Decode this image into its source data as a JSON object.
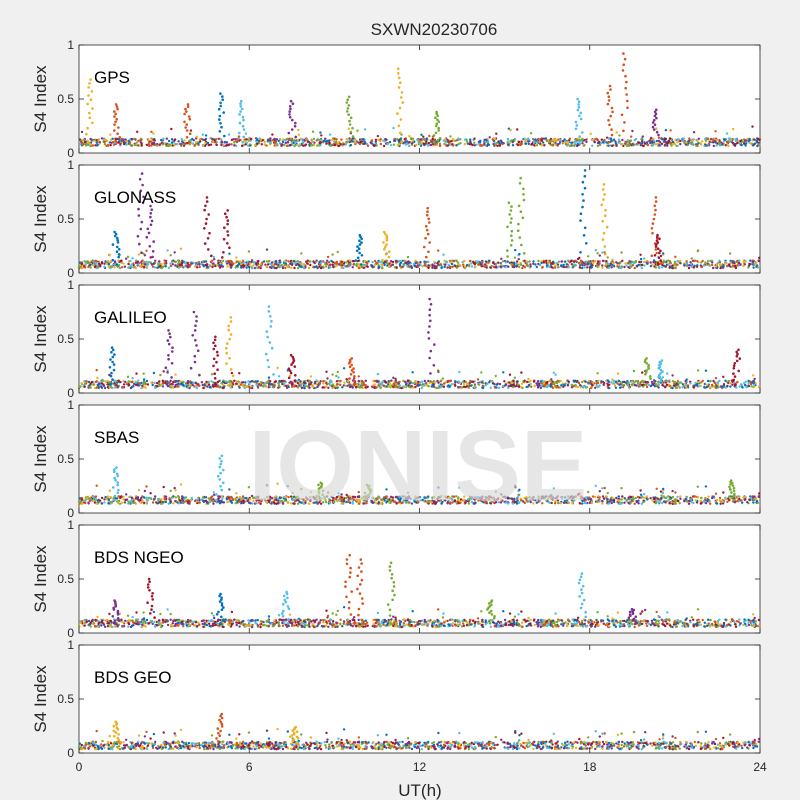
{
  "chart_data": {
    "type": "scatter",
    "title": "SXWN20230706",
    "xlabel": "UT(h)",
    "ylabel": "S4 Index",
    "xlim": [
      0,
      24
    ],
    "ylim": [
      0,
      1
    ],
    "xticks": [
      "0",
      "6",
      "12",
      "18",
      "24"
    ],
    "yticks": [
      "0",
      "0.5",
      "1"
    ],
    "grid": false,
    "watermark": "IONISE",
    "colors": [
      "#0072BD",
      "#D95319",
      "#EDB120",
      "#7E2F8E",
      "#77AC30",
      "#4DBEEE",
      "#A2142F"
    ],
    "panels": [
      {
        "name": "GPS",
        "baseline": 0.1,
        "spikes": [
          {
            "x": 0.4,
            "peak": 0.68,
            "c": 2
          },
          {
            "x": 1.3,
            "peak": 0.45,
            "c": 1
          },
          {
            "x": 3.8,
            "peak": 0.45,
            "c": 1
          },
          {
            "x": 5.0,
            "peak": 0.55,
            "c": 0
          },
          {
            "x": 5.7,
            "peak": 0.48,
            "c": 5
          },
          {
            "x": 7.5,
            "peak": 0.48,
            "c": 3
          },
          {
            "x": 9.5,
            "peak": 0.52,
            "c": 4
          },
          {
            "x": 11.3,
            "peak": 0.78,
            "c": 2
          },
          {
            "x": 12.6,
            "peak": 0.38,
            "c": 4
          },
          {
            "x": 17.6,
            "peak": 0.5,
            "c": 5
          },
          {
            "x": 18.7,
            "peak": 0.62,
            "c": 1
          },
          {
            "x": 19.2,
            "peak": 0.92,
            "c": 1
          },
          {
            "x": 20.3,
            "peak": 0.4,
            "c": 3
          }
        ]
      },
      {
        "name": "GLONASS",
        "baseline": 0.08,
        "spikes": [
          {
            "x": 1.3,
            "peak": 0.38,
            "c": 0
          },
          {
            "x": 2.2,
            "peak": 0.92,
            "c": 3
          },
          {
            "x": 2.5,
            "peak": 0.62,
            "c": 3
          },
          {
            "x": 4.5,
            "peak": 0.7,
            "c": 6
          },
          {
            "x": 5.2,
            "peak": 0.58,
            "c": 6
          },
          {
            "x": 9.9,
            "peak": 0.35,
            "c": 0
          },
          {
            "x": 10.8,
            "peak": 0.38,
            "c": 2
          },
          {
            "x": 12.3,
            "peak": 0.6,
            "c": 1
          },
          {
            "x": 15.2,
            "peak": 0.65,
            "c": 4
          },
          {
            "x": 15.6,
            "peak": 0.88,
            "c": 4
          },
          {
            "x": 17.8,
            "peak": 0.95,
            "c": 0
          },
          {
            "x": 18.5,
            "peak": 0.82,
            "c": 2
          },
          {
            "x": 20.3,
            "peak": 0.7,
            "c": 1
          },
          {
            "x": 20.4,
            "peak": 0.35,
            "c": 6
          }
        ]
      },
      {
        "name": "GALILEO",
        "baseline": 0.08,
        "spikes": [
          {
            "x": 1.2,
            "peak": 0.42,
            "c": 0
          },
          {
            "x": 3.2,
            "peak": 0.58,
            "c": 3
          },
          {
            "x": 4.1,
            "peak": 0.75,
            "c": 3
          },
          {
            "x": 4.8,
            "peak": 0.52,
            "c": 6
          },
          {
            "x": 5.3,
            "peak": 0.7,
            "c": 2
          },
          {
            "x": 6.7,
            "peak": 0.8,
            "c": 5
          },
          {
            "x": 7.5,
            "peak": 0.35,
            "c": 6
          },
          {
            "x": 9.6,
            "peak": 0.32,
            "c": 1
          },
          {
            "x": 12.4,
            "peak": 0.87,
            "c": 3
          },
          {
            "x": 20.0,
            "peak": 0.32,
            "c": 4
          },
          {
            "x": 20.5,
            "peak": 0.3,
            "c": 5
          },
          {
            "x": 23.2,
            "peak": 0.4,
            "c": 6
          }
        ]
      },
      {
        "name": "SBAS",
        "baseline": 0.12,
        "spikes": [
          {
            "x": 1.3,
            "peak": 0.42,
            "c": 5
          },
          {
            "x": 5.0,
            "peak": 0.53,
            "c": 5
          },
          {
            "x": 8.5,
            "peak": 0.28,
            "c": 4
          },
          {
            "x": 10.2,
            "peak": 0.26,
            "c": 4
          },
          {
            "x": 23.0,
            "peak": 0.3,
            "c": 4
          }
        ]
      },
      {
        "name": "BDS NGEO",
        "baseline": 0.09,
        "spikes": [
          {
            "x": 1.3,
            "peak": 0.3,
            "c": 3
          },
          {
            "x": 2.5,
            "peak": 0.5,
            "c": 6
          },
          {
            "x": 5.0,
            "peak": 0.36,
            "c": 0
          },
          {
            "x": 7.3,
            "peak": 0.38,
            "c": 5
          },
          {
            "x": 9.5,
            "peak": 0.72,
            "c": 1
          },
          {
            "x": 9.9,
            "peak": 0.68,
            "c": 1
          },
          {
            "x": 11.0,
            "peak": 0.65,
            "c": 4
          },
          {
            "x": 14.5,
            "peak": 0.3,
            "c": 4
          },
          {
            "x": 17.7,
            "peak": 0.55,
            "c": 5
          },
          {
            "x": 19.5,
            "peak": 0.22,
            "c": 3
          }
        ]
      },
      {
        "name": "BDS GEO",
        "baseline": 0.07,
        "spikes": [
          {
            "x": 1.3,
            "peak": 0.29,
            "c": 2
          },
          {
            "x": 5.0,
            "peak": 0.36,
            "c": 1
          },
          {
            "x": 7.6,
            "peak": 0.24,
            "c": 2
          }
        ]
      }
    ]
  }
}
